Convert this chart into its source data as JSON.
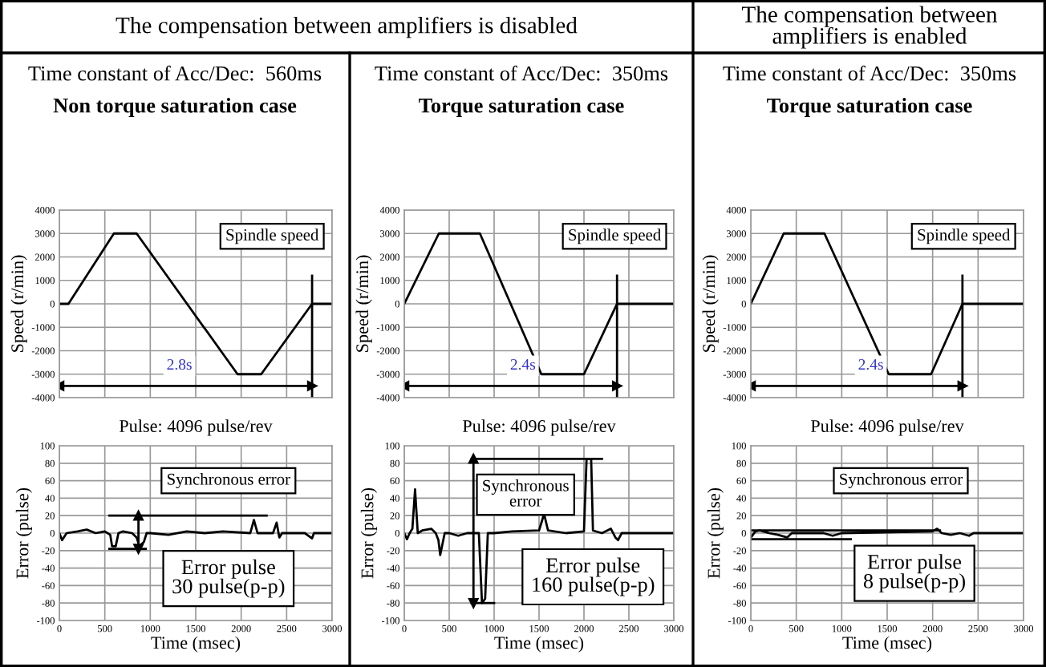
{
  "chart_data": [
    {
      "type": "line",
      "title": "Time constant of Acc/Dec:  560ms",
      "subtitle": "Non torque saturation case",
      "ylabel": "Speed (r/min)",
      "series": [
        {
          "color": "#000000",
          "x": [
            0,
            100,
            600,
            850,
            1960,
            2220,
            2780,
            3000
          ],
          "values": [
            0,
            0,
            3000,
            3000,
            -3000,
            -3000,
            0,
            0
          ]
        },
        {
          "color": "#000000",
          "x": [
            0,
            2780
          ],
          "values": [
            -3500,
            -3500
          ],
          "marker": "triangle"
        },
        {
          "color": "#000000",
          "x": [
            2780,
            2780
          ],
          "values": [
            1200,
            -4000
          ]
        }
      ],
      "xlim": [
        0,
        3000
      ],
      "xticks": [
        {
          "value": 0,
          "label": null
        },
        {
          "value": 500,
          "label": null
        },
        {
          "value": 1000,
          "label": null
        },
        {
          "value": 1500,
          "label": null
        },
        {
          "value": 2000,
          "label": null
        },
        {
          "value": 2500,
          "label": null
        },
        {
          "value": 3000,
          "label": null
        }
      ],
      "ylim": [
        -4000,
        4000
      ],
      "yticks": [
        -4000,
        -3000,
        -2000,
        -1000,
        0,
        1000,
        2000,
        3000,
        4000
      ],
      "grid": true,
      "tick_labels": "y",
      "annotations": [
        "Spindle speed",
        "2.8s",
        "Pulse: 4096 pulse/rev",
        "The compensation between amplifiers is disabled"
      ]
    },
    {
      "type": "line",
      "title": "Time constant of Acc/Dec:  350ms",
      "subtitle": "Torque saturation case",
      "ylabel": "Speed (r/min)",
      "series": [
        {
          "color": "#000000",
          "x": [
            0,
            385,
            842,
            1526,
            2000,
            2368,
            3000
          ],
          "values": [
            0,
            3000,
            3000,
            -3000,
            -3000,
            0,
            0
          ]
        },
        {
          "color": "#000000",
          "x": [
            0,
            2368
          ],
          "values": [
            -3500,
            -3500
          ],
          "marker": "triangle"
        },
        {
          "color": "#000000",
          "x": [
            2368,
            2368
          ],
          "values": [
            1200,
            -4000
          ]
        }
      ],
      "xlim": [
        0,
        3000
      ],
      "xticks": [
        {
          "value": 0,
          "label": null
        },
        {
          "value": 500,
          "label": null
        },
        {
          "value": 1000,
          "label": null
        },
        {
          "value": 1500,
          "label": null
        },
        {
          "value": 2000,
          "label": null
        },
        {
          "value": 2500,
          "label": null
        },
        {
          "value": 3000,
          "label": null
        }
      ],
      "ylim": [
        -4000,
        4000
      ],
      "yticks": [
        -4000,
        -3000,
        -2000,
        -1000,
        0,
        1000,
        2000,
        3000,
        4000
      ],
      "grid": true,
      "tick_labels": "y",
      "annotations": [
        "Spindle speed",
        "2.4s",
        "Pulse: 4096 pulse/rev"
      ]
    },
    {
      "type": "line",
      "title": "Time constant of Acc/Dec:  350ms",
      "subtitle": "Torque saturation case",
      "ylabel": "Speed (r/min)",
      "series": [
        {
          "color": "#000000",
          "x": [
            0,
            362,
            810,
            1517,
            1983,
            2328,
            3000
          ],
          "values": [
            0,
            3000,
            3000,
            -3000,
            -3000,
            0,
            0
          ]
        },
        {
          "color": "#000000",
          "x": [
            0,
            2328
          ],
          "values": [
            -3500,
            -3500
          ],
          "marker": "triangle"
        },
        {
          "color": "#000000",
          "x": [
            2328,
            2328
          ],
          "values": [
            1200,
            -4000
          ]
        }
      ],
      "xlim": [
        0,
        3000
      ],
      "xticks": [
        {
          "value": 0,
          "label": null
        },
        {
          "value": 500,
          "label": null
        },
        {
          "value": 1000,
          "label": null
        },
        {
          "value": 1500,
          "label": null
        },
        {
          "value": 2000,
          "label": null
        },
        {
          "value": 2500,
          "label": null
        },
        {
          "value": 3000,
          "label": null
        }
      ],
      "ylim": [
        -4000,
        4000
      ],
      "yticks": [
        -4000,
        -3000,
        -2000,
        -1000,
        0,
        1000,
        2000,
        3000,
        4000
      ],
      "grid": true,
      "tick_labels": "y",
      "annotations": [
        "Spindle speed",
        "2.4s",
        "Pulse: 4096 pulse/rev",
        "The compensation between\namplifiers is enabled"
      ]
    },
    {
      "type": "line",
      "xlabel": "Time (msec)",
      "ylabel": "Error (pulse)",
      "series": [
        {
          "color": "#000000",
          "x": [
            0,
            30,
            80,
            200,
            300,
            400,
            500,
            560,
            580,
            620,
            650,
            700,
            800,
            850,
            880,
            930,
            960,
            1000,
            1200,
            1400,
            1600,
            1800,
            2100,
            2140,
            2180,
            2350,
            2390,
            2420,
            2450,
            2700,
            2780,
            2800,
            3000
          ],
          "values": [
            0,
            -8,
            0,
            2,
            4,
            0,
            2,
            -2,
            -15,
            -15,
            0,
            2,
            0,
            -5,
            -15,
            -10,
            0,
            0,
            -2,
            2,
            0,
            2,
            0,
            15,
            0,
            0,
            12,
            -5,
            0,
            0,
            -6,
            0,
            0
          ]
        },
        {
          "color": "#000000",
          "x": [
            550,
            2280
          ],
          "values": [
            20,
            20
          ]
        },
        {
          "color": "#000000",
          "x": [
            550,
            950
          ],
          "values": [
            -18,
            -18
          ]
        },
        {
          "color": "#000000",
          "x": [
            870,
            870
          ],
          "values": [
            -18,
            20
          ],
          "marker": "triangle"
        }
      ],
      "xlim": [
        0,
        3000
      ],
      "xticks": [
        0,
        500,
        1000,
        1500,
        2000,
        2500,
        3000
      ],
      "ylim": [
        -100,
        100
      ],
      "yticks": [
        -100,
        -80,
        -60,
        -40,
        -20,
        0,
        20,
        40,
        60,
        80,
        100
      ],
      "grid": true,
      "annotations": [
        "Synchronous error",
        "Error pulse\n30 pulse(p-p)"
      ]
    },
    {
      "type": "line",
      "xlabel": "Time (msec)",
      "ylabel": "Error (pulse)",
      "series": [
        {
          "color": "#000000",
          "x": [
            0,
            30,
            60,
            90,
            120,
            150,
            200,
            300,
            350,
            380,
            400,
            450,
            500,
            600,
            700,
            830,
            865,
            900,
            930,
            1000,
            1200,
            1500,
            1556,
            1600,
            1800,
            2000,
            2029,
            2080,
            2100,
            2200,
            2300,
            2350,
            2380,
            2420,
            3000
          ],
          "values": [
            0,
            -7,
            0,
            5,
            50,
            0,
            3,
            5,
            0,
            -8,
            -25,
            0,
            0,
            -3,
            0,
            0,
            -80,
            -75,
            0,
            0,
            2,
            3,
            22,
            3,
            0,
            2,
            85,
            85,
            3,
            0,
            5,
            -5,
            -8,
            0,
            0
          ]
        },
        {
          "color": "#000000",
          "x": [
            750,
            2200
          ],
          "values": [
            85,
            85
          ]
        },
        {
          "color": "#000000",
          "x": [
            750,
            1000
          ],
          "values": [
            -80,
            -80
          ]
        },
        {
          "color": "#000000",
          "x": [
            770,
            770
          ],
          "values": [
            -80,
            85
          ],
          "marker": "triangle"
        }
      ],
      "xlim": [
        0,
        3000
      ],
      "xticks": [
        0,
        500,
        1000,
        1500,
        2000,
        2500,
        3000
      ],
      "ylim": [
        -100,
        100
      ],
      "yticks": [
        -100,
        -80,
        -60,
        -40,
        -20,
        0,
        20,
        40,
        60,
        80,
        100
      ],
      "grid": true,
      "annotations": [
        "Synchronous\nerror",
        "Error pulse\n160 pulse(p-p)"
      ]
    },
    {
      "type": "line",
      "xlabel": "Time (msec)",
      "ylabel": "Error (pulse)",
      "series": [
        {
          "color": "#000000",
          "x": [
            0,
            50,
            100,
            200,
            300,
            400,
            450,
            800,
            900,
            1000,
            2000,
            2050,
            2100,
            2200,
            2300,
            2400,
            2450,
            3000
          ],
          "values": [
            -5,
            2,
            3,
            0,
            -2,
            -5,
            0,
            0,
            -3,
            0,
            2,
            5,
            0,
            -2,
            0,
            -3,
            0,
            0
          ]
        },
        {
          "color": "#000000",
          "x": [
            0,
            2080
          ],
          "values": [
            3,
            3
          ]
        },
        {
          "color": "#000000",
          "x": [
            0,
            1100
          ],
          "values": [
            -7,
            -7
          ]
        }
      ],
      "xlim": [
        0,
        3000
      ],
      "xticks": [
        0,
        500,
        1000,
        1500,
        2000,
        2500,
        3000
      ],
      "ylim": [
        -100,
        100
      ],
      "yticks": [
        -100,
        -80,
        -60,
        -40,
        -20,
        0,
        20,
        40,
        60,
        80,
        100
      ],
      "grid": true,
      "annotations": [
        "Synchronous error",
        "Error pulse\n8 pulse(p-p)"
      ]
    }
  ]
}
